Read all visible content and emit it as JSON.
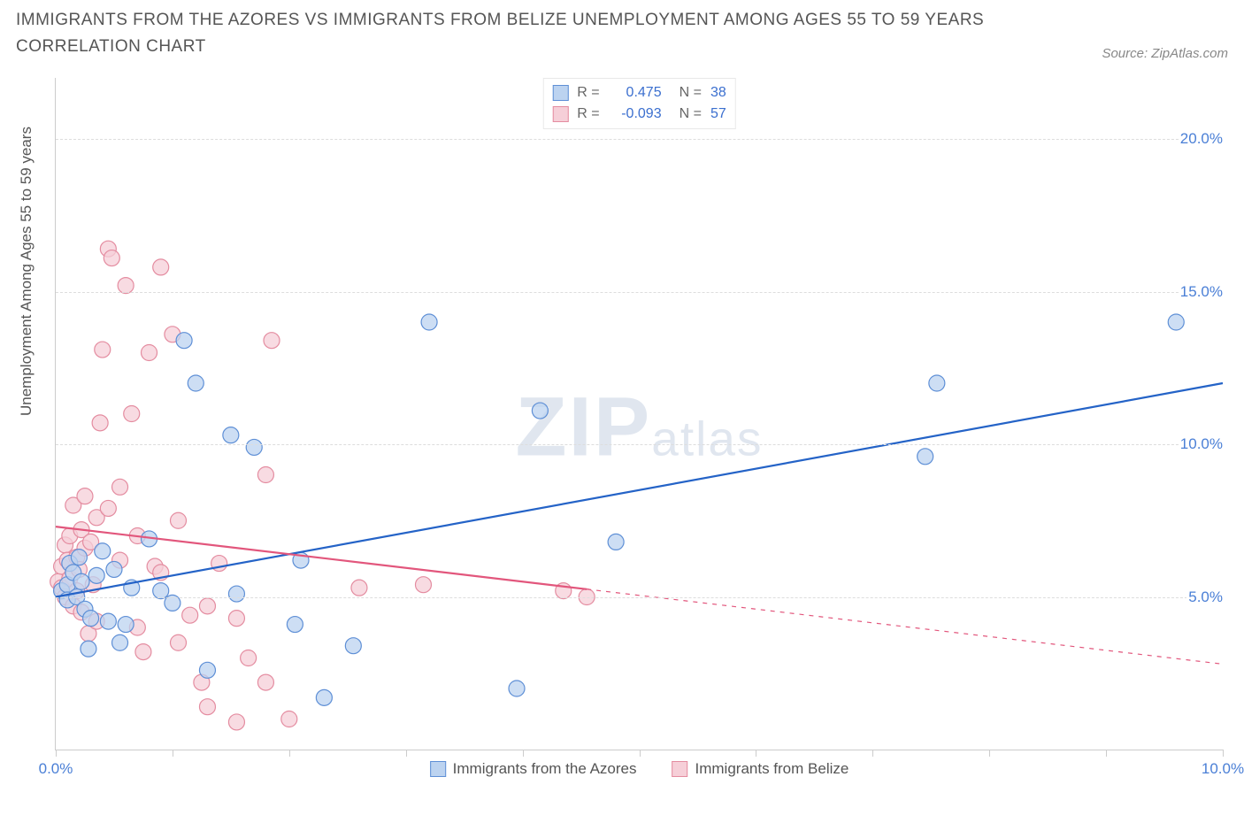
{
  "title": "IMMIGRANTS FROM THE AZORES VS IMMIGRANTS FROM BELIZE UNEMPLOYMENT AMONG AGES 55 TO 59 YEARS CORRELATION CHART",
  "source": "Source: ZipAtlas.com",
  "watermark_parts": {
    "z": "ZIP",
    "atlas": "atlas"
  },
  "y_axis_label": "Unemployment Among Ages 55 to 59 years",
  "chart": {
    "type": "scatter",
    "background_color": "#ffffff",
    "grid_color": "#dddddd",
    "axis_color": "#cccccc",
    "xlim": [
      0,
      10
    ],
    "ylim": [
      0,
      22
    ],
    "xticks": [
      0,
      1,
      2,
      3,
      4,
      5,
      6,
      7,
      8,
      9,
      10
    ],
    "xtick_labels": {
      "0": "0.0%",
      "10": "10.0%"
    },
    "yticks": [
      5,
      10,
      15,
      20
    ],
    "ytick_labels": {
      "5": "5.0%",
      "10": "10.0%",
      "15": "15.0%",
      "20": "20.0%"
    },
    "tick_color": "#4a7fd6",
    "marker_radius": 9,
    "marker_stroke_width": 1.2,
    "line_width": 2.2,
    "series": [
      {
        "name": "Immigrants from the Azores",
        "color_fill": "#bcd3f0",
        "color_stroke": "#5e8fd6",
        "line_color": "#2463c7",
        "R": "0.475",
        "N": "38",
        "trend": {
          "x1": 0,
          "y1": 5.0,
          "x2": 10,
          "y2": 12.0,
          "solid_until_x": 10
        },
        "points": [
          [
            0.05,
            5.2
          ],
          [
            0.1,
            5.4
          ],
          [
            0.1,
            4.9
          ],
          [
            0.12,
            6.1
          ],
          [
            0.15,
            5.8
          ],
          [
            0.18,
            5.0
          ],
          [
            0.2,
            6.3
          ],
          [
            0.22,
            5.5
          ],
          [
            0.25,
            4.6
          ],
          [
            0.28,
            3.3
          ],
          [
            0.3,
            4.3
          ],
          [
            0.35,
            5.7
          ],
          [
            0.4,
            6.5
          ],
          [
            0.45,
            4.2
          ],
          [
            0.5,
            5.9
          ],
          [
            0.55,
            3.5
          ],
          [
            0.6,
            4.1
          ],
          [
            0.65,
            5.3
          ],
          [
            0.8,
            6.9
          ],
          [
            0.9,
            5.2
          ],
          [
            1.0,
            4.8
          ],
          [
            1.1,
            13.4
          ],
          [
            1.2,
            12.0
          ],
          [
            1.3,
            2.6
          ],
          [
            1.5,
            10.3
          ],
          [
            1.55,
            5.1
          ],
          [
            1.7,
            9.9
          ],
          [
            2.05,
            4.1
          ],
          [
            2.1,
            6.2
          ],
          [
            2.3,
            1.7
          ],
          [
            2.55,
            3.4
          ],
          [
            3.2,
            14.0
          ],
          [
            3.95,
            2.0
          ],
          [
            4.15,
            11.1
          ],
          [
            4.8,
            6.8
          ],
          [
            7.45,
            9.6
          ],
          [
            7.55,
            12.0
          ],
          [
            9.6,
            14.0
          ]
        ]
      },
      {
        "name": "Immigrants from Belize",
        "color_fill": "#f6cfd8",
        "color_stroke": "#e48ca0",
        "line_color": "#e2567c",
        "R": "-0.093",
        "N": "57",
        "trend": {
          "x1": 0,
          "y1": 7.3,
          "x2": 10,
          "y2": 2.8,
          "solid_until_x": 4.55
        },
        "points": [
          [
            0.02,
            5.5
          ],
          [
            0.05,
            5.3
          ],
          [
            0.05,
            6.0
          ],
          [
            0.08,
            6.7
          ],
          [
            0.08,
            5.0
          ],
          [
            0.1,
            6.2
          ],
          [
            0.12,
            7.0
          ],
          [
            0.12,
            5.6
          ],
          [
            0.15,
            4.7
          ],
          [
            0.15,
            8.0
          ],
          [
            0.18,
            5.2
          ],
          [
            0.18,
            6.3
          ],
          [
            0.2,
            5.9
          ],
          [
            0.22,
            7.2
          ],
          [
            0.22,
            4.5
          ],
          [
            0.25,
            6.6
          ],
          [
            0.25,
            8.3
          ],
          [
            0.28,
            3.8
          ],
          [
            0.3,
            6.8
          ],
          [
            0.32,
            5.4
          ],
          [
            0.35,
            7.6
          ],
          [
            0.35,
            4.2
          ],
          [
            0.38,
            10.7
          ],
          [
            0.4,
            13.1
          ],
          [
            0.45,
            16.4
          ],
          [
            0.45,
            7.9
          ],
          [
            0.48,
            16.1
          ],
          [
            0.55,
            6.2
          ],
          [
            0.55,
            8.6
          ],
          [
            0.6,
            15.2
          ],
          [
            0.65,
            11.0
          ],
          [
            0.7,
            7.0
          ],
          [
            0.7,
            4.0
          ],
          [
            0.75,
            3.2
          ],
          [
            0.8,
            13.0
          ],
          [
            0.85,
            6.0
          ],
          [
            0.9,
            5.8
          ],
          [
            0.9,
            15.8
          ],
          [
            1.0,
            13.6
          ],
          [
            1.05,
            3.5
          ],
          [
            1.05,
            7.5
          ],
          [
            1.15,
            4.4
          ],
          [
            1.25,
            2.2
          ],
          [
            1.3,
            1.4
          ],
          [
            1.3,
            4.7
          ],
          [
            1.4,
            6.1
          ],
          [
            1.55,
            4.3
          ],
          [
            1.55,
            0.9
          ],
          [
            1.65,
            3.0
          ],
          [
            1.8,
            9.0
          ],
          [
            1.8,
            2.2
          ],
          [
            1.85,
            13.4
          ],
          [
            2.0,
            1.0
          ],
          [
            2.6,
            5.3
          ],
          [
            3.15,
            5.4
          ],
          [
            4.35,
            5.2
          ],
          [
            4.55,
            5.0
          ]
        ]
      }
    ],
    "legend_bottom": [
      {
        "swatch_fill": "#bcd3f0",
        "swatch_stroke": "#5e8fd6",
        "label": "Immigrants from the Azores"
      },
      {
        "swatch_fill": "#f6cfd8",
        "swatch_stroke": "#e48ca0",
        "label": "Immigrants from Belize"
      }
    ]
  }
}
